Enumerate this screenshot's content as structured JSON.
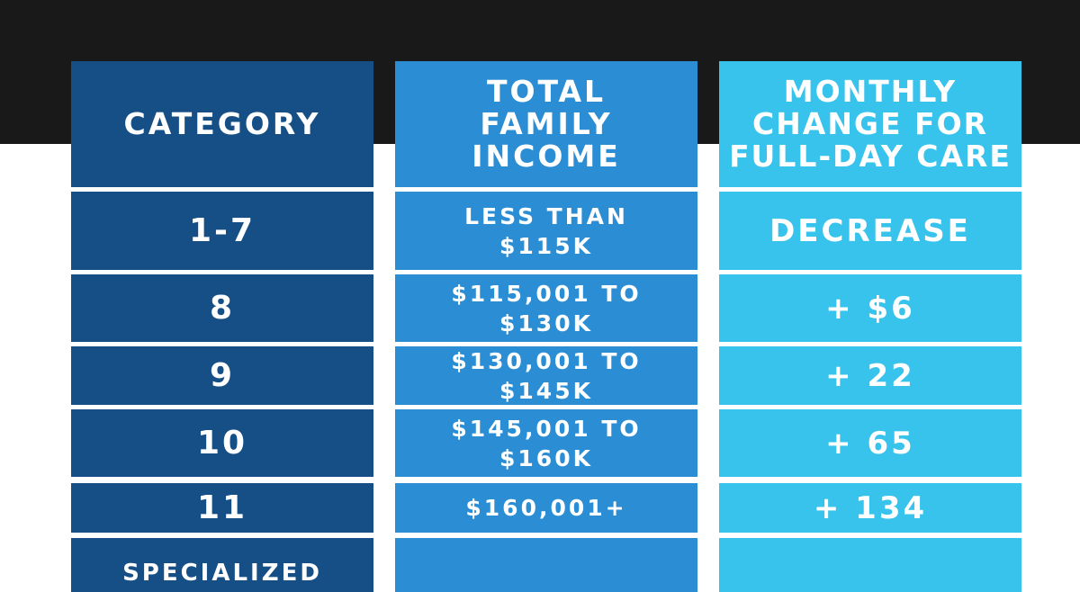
{
  "table": {
    "header": [
      "CATEGORY",
      "TOTAL\nFAMILY\nINCOME",
      "MONTHLY\nCHANGE FOR\nFULL-DAY CARE"
    ],
    "rows": [
      [
        "1-7",
        "LESS THAN\n$115K",
        "DECREASE"
      ],
      [
        "8",
        "$115,001 TO\n$130K",
        "+ $6"
      ],
      [
        "9",
        "$130,001 TO\n$145K",
        "+ 22"
      ],
      [
        "10",
        "$145,001 TO\n$160K",
        "+ 65"
      ],
      [
        "11",
        "$160,001+",
        "+ 134"
      ],
      [
        "SPECIALIZED",
        "",
        ""
      ]
    ]
  }
}
